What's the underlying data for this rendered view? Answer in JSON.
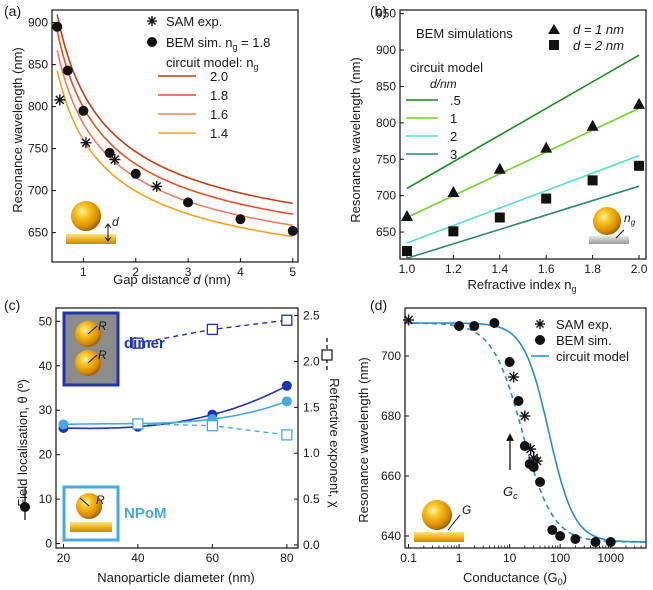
{
  "chart_data": [
    {
      "panel": "(a)",
      "type": "line",
      "xlabel": "Gap distance d (nm)",
      "ylabel": "Resonance wavelength (nm)",
      "xlim": [
        0.4,
        5.1
      ],
      "ylim": [
        615,
        915
      ],
      "xticks": [
        1,
        2,
        3,
        4,
        5
      ],
      "yticks": [
        650,
        700,
        750,
        800,
        850,
        900
      ],
      "legend": {
        "sam": "SAM exp.",
        "bem_prefix": "BEM sim. n",
        "bem_sub": "g",
        "bem_value": " = 1.8",
        "circuit": "circuit model: n",
        "circuit_sub": "g"
      },
      "inset_label": "d",
      "series": [
        {
          "name": "SAM exp.",
          "marker": "asterisk",
          "x": [
            0.55,
            1.05,
            1.6,
            2.4
          ],
          "y": [
            808,
            757,
            737,
            705
          ]
        },
        {
          "name": "BEM sim. ng = 1.8",
          "marker": "circle",
          "x": [
            0.5,
            0.7,
            1.0,
            1.5,
            2.0,
            3.0,
            4.0,
            5.0
          ],
          "y": [
            895,
            843,
            795,
            745,
            720,
            686,
            666,
            652
          ]
        },
        {
          "name": "2.0",
          "color": "#c83c14",
          "c": 235.5,
          "b": 0.56,
          "d0": -0.08,
          "a": 590
        },
        {
          "name": "1.8",
          "color": "#e9502a",
          "c": 228.5,
          "b": 0.56,
          "d0": -0.08,
          "a": 580
        },
        {
          "name": "1.6",
          "color": "#f27e62",
          "c": 218,
          "b": 0.56,
          "d0": -0.08,
          "a": 571
        },
        {
          "name": "1.4",
          "color": "#f2a21e",
          "c": 207,
          "b": 0.56,
          "d0": -0.08,
          "a": 562
        }
      ]
    },
    {
      "panel": "(b)",
      "type": "line",
      "title": "BEM simulations",
      "xlabel": "Refractive index n",
      "xlabel_sub": "g",
      "ylabel": "Resonance wavelength (nm)",
      "xlim": [
        0.97,
        2.03
      ],
      "ylim": [
        613,
        955
      ],
      "xticks": [
        "1.0",
        "1.2",
        "1.4",
        "1.6",
        "1.8",
        "2.0"
      ],
      "yticks": [
        650,
        700,
        750,
        800,
        850,
        900,
        950
      ],
      "legend_triangle": "d = 1 nm",
      "legend_square": "d = 2 nm",
      "circuit_title": "circuit model",
      "circuit_subtitle": "d/nm",
      "inset_label": "n",
      "inset_label_sub": "g",
      "series": [
        {
          "name": ".5",
          "color": "#1f8c1f",
          "x": [
            1.0,
            2.0
          ],
          "y": [
            710,
            893
          ]
        },
        {
          "name": "1",
          "color": "#6fd22a",
          "x": [
            1.0,
            2.0
          ],
          "y": [
            670,
            820
          ]
        },
        {
          "name": "2",
          "color": "#52e0c6",
          "x": [
            1.0,
            2.0
          ],
          "y": [
            635,
            755
          ]
        },
        {
          "name": "3",
          "color": "#2e8a66",
          "x": [
            1.0,
            2.0
          ],
          "y": [
            614,
            713
          ]
        },
        {
          "name": "d = 1 nm",
          "marker": "triangle",
          "x": [
            1.0,
            1.2,
            1.4,
            1.6,
            1.8,
            2.0
          ],
          "y": [
            672,
            705,
            737,
            766,
            796,
            826
          ]
        },
        {
          "name": "d = 2 nm",
          "marker": "square",
          "x": [
            1.0,
            1.2,
            1.4,
            1.6,
            1.8,
            2.0
          ],
          "y": [
            624,
            651,
            670,
            696,
            721,
            741
          ]
        }
      ]
    },
    {
      "panel": "(c)",
      "type": "line",
      "xlabel": "Nanoparticle diameter (nm)",
      "ylabel": "Field localisation, θ (º)",
      "y2label": "Refractive exponent, χ",
      "xlim": [
        18,
        83
      ],
      "ylim": [
        -1,
        53
      ],
      "y2lim": [
        -0.0333,
        2.5833
      ],
      "xticks": [
        20,
        40,
        60,
        80
      ],
      "yticks": [
        0,
        10,
        20,
        30,
        40,
        50
      ],
      "y2ticks": [
        "0.0",
        "0.5",
        "1.0",
        "1.5",
        "2.0",
        "2.5"
      ],
      "inset_dimer": "dimer",
      "inset_npom": "NPoM",
      "inset_R": "R",
      "series": [
        {
          "name": "dimer θ",
          "color": "#2233b0",
          "x": [
            20,
            40,
            60,
            80
          ],
          "y": [
            26,
            26.3,
            29,
            35.5
          ]
        },
        {
          "name": "NPoM θ",
          "color": "#46a8e6",
          "x": [
            20,
            40,
            60,
            80
          ],
          "y": [
            26.8,
            27,
            28,
            32
          ]
        },
        {
          "name": "dimer χ",
          "color": "#2233b0",
          "marker": "open-square",
          "x": [
            40,
            60,
            80
          ],
          "y": [
            2.2,
            2.35,
            2.45
          ]
        },
        {
          "name": "NPoM χ",
          "color": "#46a8e6",
          "marker": "open-square",
          "x": [
            40,
            60,
            80
          ],
          "y": [
            1.32,
            1.3,
            1.2
          ]
        }
      ]
    },
    {
      "panel": "(d)",
      "type": "line",
      "xscale": "log",
      "xlabel": "Conductance (G",
      "xlabel_sub": "0",
      "xlabel_end": ")",
      "ylabel": "Resonance wavelength (nm)",
      "xlim": [
        0.085,
        5000
      ],
      "ylim": [
        636,
        716
      ],
      "xticks": [
        "0.1",
        "1",
        "10",
        "100",
        "1000"
      ],
      "yticks": [
        640,
        660,
        680,
        700
      ],
      "legend": [
        "SAM exp.",
        "BEM sim.",
        "circuit model"
      ],
      "gc_label": "G",
      "gc_sub": "c",
      "inset_label": "G",
      "series": [
        {
          "name": "SAM exp.",
          "marker": "asterisk",
          "x": [
            0.1,
            12,
            20,
            26,
            30,
            35
          ],
          "y": [
            712,
            693,
            680,
            669,
            666,
            665
          ]
        },
        {
          "name": "BEM sim.",
          "marker": "circle",
          "x": [
            1,
            2,
            5,
            10,
            15,
            20,
            25,
            30,
            40,
            70,
            100,
            200,
            500,
            1000
          ],
          "y": [
            710,
            710,
            711,
            698,
            685,
            670,
            664,
            663,
            658,
            642,
            640,
            639,
            638,
            638
          ]
        },
        {
          "name": "BEM dashed fit",
          "color": "#2a8ad1",
          "lo": 638,
          "hi": 711,
          "x0": 18,
          "w": 0.3
        },
        {
          "name": "circuit model",
          "color": "#2a8ad1",
          "lo": 638,
          "hi": 711,
          "x0": 60,
          "w": 0.25
        }
      ]
    }
  ]
}
